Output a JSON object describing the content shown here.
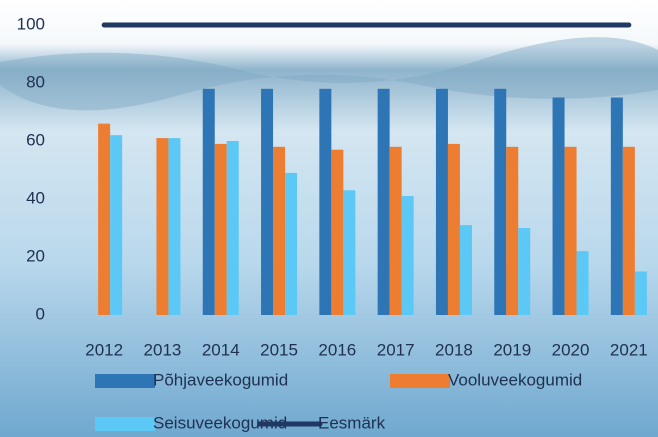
{
  "chart_data": {
    "type": "bar",
    "categories": [
      "2012",
      "2013",
      "2014",
      "2015",
      "2016",
      "2017",
      "2018",
      "2019",
      "2020",
      "2021"
    ],
    "series": [
      {
        "name": "Põhjaveekogumid",
        "color": "#2e75b6",
        "type": "bar",
        "values": [
          null,
          null,
          78,
          78,
          78,
          78,
          78,
          78,
          75,
          75
        ]
      },
      {
        "name": "Vooluveekogumid",
        "color": "#ed7d31",
        "type": "bar",
        "values": [
          66,
          61,
          59,
          58,
          57,
          58,
          59,
          58,
          58,
          58
        ]
      },
      {
        "name": "Seisuveekogumid",
        "color": "#5cc8f5",
        "type": "bar",
        "values": [
          62,
          61,
          60,
          49,
          43,
          41,
          31,
          30,
          22,
          15
        ]
      },
      {
        "name": "Eesmärk",
        "color": "#1f3864",
        "type": "line",
        "values": [
          100,
          100,
          100,
          100,
          100,
          100,
          100,
          100,
          100,
          100
        ]
      }
    ],
    "ylim": [
      0,
      100
    ],
    "yticks": [
      0,
      20,
      40,
      60,
      80,
      100
    ]
  }
}
